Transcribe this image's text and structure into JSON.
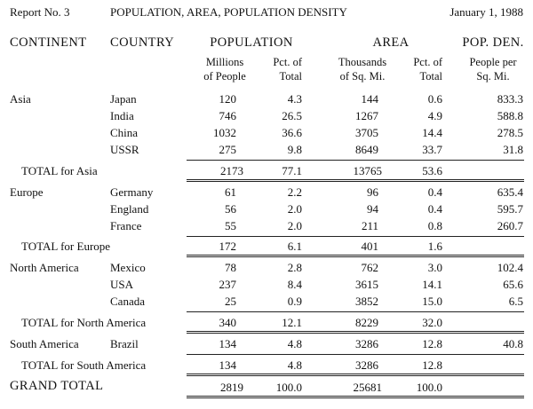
{
  "report": {
    "number": "Report No. 3",
    "title": "POPULATION, AREA, POPULATION DENSITY",
    "date": "January 1, 1988"
  },
  "headers": {
    "continent": "CONTINENT",
    "country": "COUNTRY",
    "population": "POPULATION",
    "area": "AREA",
    "pop_den": "POP. DEN.",
    "pop_millions_1": "Millions",
    "pop_millions_2": "of People",
    "pop_pct_1": "Pct. of",
    "pop_pct_2": "Total",
    "area_thousands_1": "Thousands",
    "area_thousands_2": "of Sq. Mi.",
    "area_pct_1": "Pct. of",
    "area_pct_2": "Total",
    "den_1": "People per",
    "den_2": "Sq. Mi."
  },
  "rows": [
    {
      "continent": "Asia",
      "country": "Japan",
      "pop": "120",
      "pop_pct": "4.3",
      "area": "144",
      "area_pct": "0.6",
      "den": "833.3"
    },
    {
      "continent": "",
      "country": "India",
      "pop": "746",
      "pop_pct": "26.5",
      "area": "1267",
      "area_pct": "4.9",
      "den": "588.8"
    },
    {
      "continent": "",
      "country": "China",
      "pop": "1032",
      "pop_pct": "36.6",
      "area": "3705",
      "area_pct": "14.4",
      "den": "278.5"
    },
    {
      "continent": "",
      "country": "USSR",
      "pop": "275",
      "pop_pct": "9.8",
      "area": "8649",
      "area_pct": "33.7",
      "den": "31.8"
    },
    {
      "total": "TOTAL for Asia",
      "pop": "2173",
      "pop_pct": "77.1",
      "area": "13765",
      "area_pct": "53.6",
      "den": ""
    },
    {
      "continent": "Europe",
      "country": "Germany",
      "pop": "61",
      "pop_pct": "2.2",
      "area": "96",
      "area_pct": "0.4",
      "den": "635.4"
    },
    {
      "continent": "",
      "country": "England",
      "pop": "56",
      "pop_pct": "2.0",
      "area": "94",
      "area_pct": "0.4",
      "den": "595.7"
    },
    {
      "continent": "",
      "country": "France",
      "pop": "55",
      "pop_pct": "2.0",
      "area": "211",
      "area_pct": "0.8",
      "den": "260.7"
    },
    {
      "total": "TOTAL for Europe",
      "pop": "172",
      "pop_pct": "6.1",
      "area": "401",
      "area_pct": "1.6",
      "den": ""
    },
    {
      "continent": "North America",
      "country": "Mexico",
      "pop": "78",
      "pop_pct": "2.8",
      "area": "762",
      "area_pct": "3.0",
      "den": "102.4"
    },
    {
      "continent": "",
      "country": "USA",
      "pop": "237",
      "pop_pct": "8.4",
      "area": "3615",
      "area_pct": "14.1",
      "den": "65.6"
    },
    {
      "continent": "",
      "country": "Canada",
      "pop": "25",
      "pop_pct": "0.9",
      "area": "3852",
      "area_pct": "15.0",
      "den": "6.5"
    },
    {
      "total": "TOTAL for North America",
      "pop": "340",
      "pop_pct": "12.1",
      "area": "8229",
      "area_pct": "32.0",
      "den": ""
    },
    {
      "continent": "South America",
      "country": "Brazil",
      "pop": "134",
      "pop_pct": "4.8",
      "area": "3286",
      "area_pct": "12.8",
      "den": "40.8"
    },
    {
      "total": "TOTAL for South America",
      "pop": "134",
      "pop_pct": "4.8",
      "area": "3286",
      "area_pct": "12.8",
      "den": ""
    },
    {
      "total": "GRAND TOTAL",
      "grand": true,
      "pop": "2819",
      "pop_pct": "100.0",
      "area": "25681",
      "area_pct": "100.0",
      "den": ""
    }
  ]
}
